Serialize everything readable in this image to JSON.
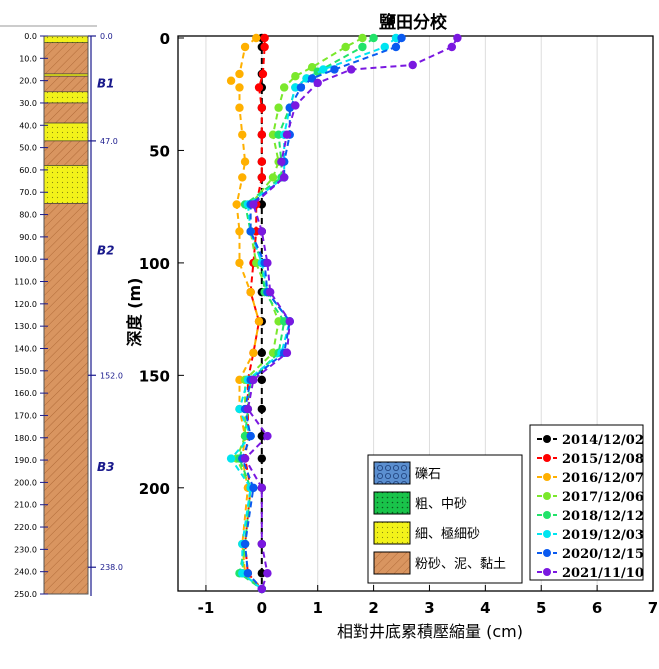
{
  "chart_data": {
    "type": "line",
    "title": "鹽田分校",
    "xlabel": "相對井底累積壓縮量 (cm)",
    "ylabel": "深度 (m)",
    "xlim": [
      -1.5,
      7
    ],
    "ylim": [
      0,
      245
    ],
    "x_ticks": [
      -1,
      0,
      1,
      2,
      3,
      4,
      5,
      6,
      7
    ],
    "y_ticks": [
      0,
      50,
      100,
      150,
      200
    ],
    "grid": "vertical",
    "legend_position": "bottom-right",
    "series": [
      {
        "name": "2014/12/02",
        "color": "#000000",
        "points": [
          [
            0,
            0
          ],
          [
            0,
            4
          ],
          [
            0,
            16
          ],
          [
            0,
            22
          ],
          [
            0,
            31
          ],
          [
            0,
            43
          ],
          [
            0,
            55
          ],
          [
            0,
            62
          ],
          [
            0,
            74
          ],
          [
            0,
            86
          ],
          [
            0,
            100
          ],
          [
            0,
            113
          ],
          [
            0,
            126
          ],
          [
            0,
            140
          ],
          [
            0,
            152
          ],
          [
            0,
            165
          ],
          [
            0,
            177
          ],
          [
            0,
            187
          ],
          [
            0,
            200
          ],
          [
            0,
            225
          ],
          [
            0,
            238
          ],
          [
            0,
            245
          ]
        ]
      },
      {
        "name": "2015/12/08",
        "color": "#ff0000",
        "points": [
          [
            0.05,
            0
          ],
          [
            0.05,
            4
          ],
          [
            0.02,
            16
          ],
          [
            -0.05,
            22
          ],
          [
            0,
            31
          ],
          [
            0,
            43
          ],
          [
            0,
            55
          ],
          [
            0,
            62
          ],
          [
            -0.1,
            74
          ],
          [
            -0.1,
            86
          ],
          [
            -0.15,
            100
          ],
          [
            -0.2,
            113
          ],
          [
            -0.05,
            126
          ],
          [
            -0.15,
            140
          ],
          [
            -0.25,
            152
          ],
          [
            -0.25,
            165
          ],
          [
            -0.25,
            177
          ],
          [
            -0.3,
            187
          ],
          [
            -0.2,
            200
          ],
          [
            -0.3,
            225
          ],
          [
            -0.25,
            238
          ],
          [
            0,
            245
          ]
        ]
      },
      {
        "name": "2016/12/07",
        "color": "#ffb000",
        "points": [
          [
            -0.1,
            0
          ],
          [
            -0.3,
            4
          ],
          [
            -0.4,
            16
          ],
          [
            -0.55,
            19
          ],
          [
            -0.4,
            22
          ],
          [
            -0.4,
            31
          ],
          [
            -0.35,
            43
          ],
          [
            -0.3,
            55
          ],
          [
            -0.35,
            62
          ],
          [
            -0.45,
            74
          ],
          [
            -0.4,
            86
          ],
          [
            -0.4,
            100
          ],
          [
            -0.2,
            113
          ],
          [
            -0.05,
            126
          ],
          [
            -0.15,
            140
          ],
          [
            -0.4,
            152
          ],
          [
            -0.4,
            165
          ],
          [
            -0.3,
            177
          ],
          [
            -0.35,
            187
          ],
          [
            -0.25,
            200
          ],
          [
            -0.35,
            225
          ],
          [
            -0.3,
            238
          ],
          [
            0,
            245
          ]
        ]
      },
      {
        "name": "2017/12/06",
        "color": "#7be82b",
        "points": [
          [
            1.8,
            0
          ],
          [
            1.5,
            4
          ],
          [
            0.9,
            13
          ],
          [
            0.6,
            17
          ],
          [
            0.4,
            22
          ],
          [
            0.3,
            31
          ],
          [
            0.2,
            43
          ],
          [
            0.3,
            55
          ],
          [
            0.2,
            62
          ],
          [
            -0.2,
            74
          ],
          [
            -0.2,
            86
          ],
          [
            -0.1,
            100
          ],
          [
            0.1,
            113
          ],
          [
            0.3,
            126
          ],
          [
            0.2,
            140
          ],
          [
            -0.3,
            152
          ],
          [
            -0.3,
            165
          ],
          [
            -0.3,
            177
          ],
          [
            -0.45,
            187
          ],
          [
            -0.2,
            200
          ],
          [
            -0.3,
            225
          ],
          [
            -0.35,
            238
          ],
          [
            0,
            245
          ]
        ]
      },
      {
        "name": "2018/12/12",
        "color": "#22e36a",
        "points": [
          [
            2.0,
            0
          ],
          [
            1.8,
            4
          ],
          [
            1.0,
            15
          ],
          [
            0.8,
            18
          ],
          [
            0.6,
            22
          ],
          [
            0.5,
            31
          ],
          [
            0.3,
            43
          ],
          [
            0.35,
            55
          ],
          [
            0.35,
            62
          ],
          [
            -0.3,
            74
          ],
          [
            -0.2,
            86
          ],
          [
            0,
            100
          ],
          [
            0.05,
            113
          ],
          [
            0.4,
            126
          ],
          [
            0.3,
            140
          ],
          [
            -0.2,
            152
          ],
          [
            -0.25,
            165
          ],
          [
            -0.3,
            177
          ],
          [
            -0.4,
            187
          ],
          [
            -0.2,
            200
          ],
          [
            -0.3,
            225
          ],
          [
            -0.4,
            238
          ],
          [
            0,
            245
          ]
        ]
      },
      {
        "name": "2019/12/03",
        "color": "#00e5f0",
        "points": [
          [
            2.4,
            0
          ],
          [
            2.2,
            4
          ],
          [
            1.1,
            14
          ],
          [
            0.8,
            18
          ],
          [
            0.6,
            22
          ],
          [
            0.5,
            31
          ],
          [
            0.4,
            43
          ],
          [
            0.4,
            55
          ],
          [
            0.4,
            62
          ],
          [
            -0.25,
            74
          ],
          [
            -0.2,
            86
          ],
          [
            0,
            100
          ],
          [
            0.1,
            113
          ],
          [
            0.5,
            126
          ],
          [
            0.35,
            140
          ],
          [
            -0.25,
            152
          ],
          [
            -0.4,
            165
          ],
          [
            -0.2,
            177
          ],
          [
            -0.55,
            187
          ],
          [
            -0.2,
            200
          ],
          [
            -0.35,
            225
          ],
          [
            -0.35,
            238
          ],
          [
            0,
            245
          ]
        ]
      },
      {
        "name": "2020/12/15",
        "color": "#0a5af0",
        "points": [
          [
            2.5,
            0
          ],
          [
            2.4,
            4
          ],
          [
            1.3,
            14
          ],
          [
            0.9,
            18
          ],
          [
            0.7,
            22
          ],
          [
            0.5,
            31
          ],
          [
            0.5,
            43
          ],
          [
            0.4,
            55
          ],
          [
            0.4,
            62
          ],
          [
            -0.2,
            74
          ],
          [
            -0.2,
            86
          ],
          [
            0.05,
            100
          ],
          [
            0.1,
            113
          ],
          [
            0.5,
            126
          ],
          [
            0.4,
            140
          ],
          [
            -0.2,
            152
          ],
          [
            -0.3,
            165
          ],
          [
            -0.2,
            177
          ],
          [
            -0.35,
            187
          ],
          [
            -0.15,
            200
          ],
          [
            -0.3,
            225
          ],
          [
            -0.25,
            238
          ],
          [
            0,
            245
          ]
        ]
      },
      {
        "name": "2021/11/10",
        "color": "#7a18e0",
        "points": [
          [
            3.5,
            0
          ],
          [
            3.4,
            4
          ],
          [
            2.7,
            12
          ],
          [
            1.6,
            14
          ],
          [
            1.0,
            20
          ],
          [
            0.6,
            30
          ],
          [
            0.45,
            43
          ],
          [
            0.35,
            55
          ],
          [
            0.4,
            62
          ],
          [
            -0.15,
            74
          ],
          [
            0,
            86
          ],
          [
            0.1,
            100
          ],
          [
            0.15,
            113
          ],
          [
            0.5,
            126
          ],
          [
            0.45,
            140
          ],
          [
            -0.15,
            152
          ],
          [
            -0.25,
            165
          ],
          [
            0.1,
            177
          ],
          [
            -0.3,
            187
          ],
          [
            0,
            200
          ],
          [
            0,
            225
          ],
          [
            0.1,
            238
          ],
          [
            0,
            245
          ]
        ]
      }
    ]
  },
  "column": {
    "depth_ticks": [
      "0.0",
      "10.0",
      "20.0",
      "30.0",
      "40.0",
      "50.0",
      "60.0",
      "70.0",
      "80.0",
      "90.0",
      "100.0",
      "110.0",
      "120.0",
      "130.0",
      "140.0",
      "150.0",
      "160.0",
      "170.0",
      "180.0",
      "190.0",
      "200.0",
      "210.0",
      "220.0",
      "230.0",
      "240.0",
      "250.0"
    ],
    "boundaries": [
      "0.0",
      "47.0",
      "152.0",
      "238.0"
    ],
    "boundary_depths": [
      0,
      47,
      152,
      238
    ],
    "zones": [
      {
        "label": "B1",
        "depth": 23
      },
      {
        "label": "B2",
        "depth": 98
      },
      {
        "label": "B3",
        "depth": 195
      }
    ],
    "layers": [
      {
        "type": "sand",
        "top": 0,
        "bottom": 3
      },
      {
        "type": "silt",
        "top": 3,
        "bottom": 17
      },
      {
        "type": "sand",
        "top": 17,
        "bottom": 18
      },
      {
        "type": "silt",
        "top": 18,
        "bottom": 25
      },
      {
        "type": "sand",
        "top": 25,
        "bottom": 30
      },
      {
        "type": "silt",
        "top": 30,
        "bottom": 39
      },
      {
        "type": "sand",
        "top": 39,
        "bottom": 47
      },
      {
        "type": "silt",
        "top": 47,
        "bottom": 58
      },
      {
        "type": "sand",
        "top": 58,
        "bottom": 75
      },
      {
        "type": "silt",
        "top": 75,
        "bottom": 250
      }
    ]
  },
  "soil_legend": [
    {
      "label": "礫石",
      "type": "gravel"
    },
    {
      "label": "粗、中砂",
      "type": "coarse"
    },
    {
      "label": "細、極細砂",
      "type": "sand"
    },
    {
      "label": "粉砂、泥、黏土",
      "type": "silt"
    }
  ],
  "colors": {
    "gravel": "#5b8fd0",
    "coarse": "#19c34a",
    "sand": "#f2f21a",
    "silt": "#d99560",
    "axis": "#1a1a8c"
  }
}
